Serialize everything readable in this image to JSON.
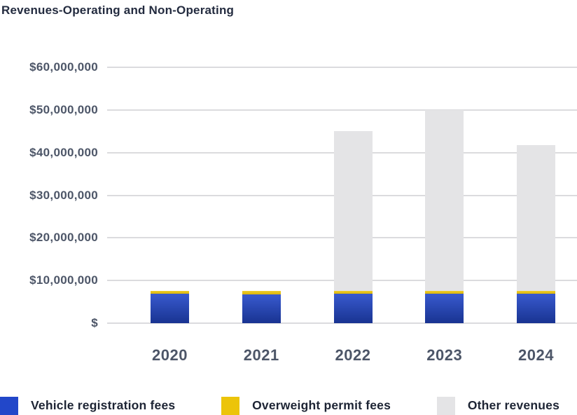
{
  "title": "Revenues-Operating and Non-Operating",
  "chart_data": {
    "type": "bar",
    "stacked": true,
    "title": "Revenues-Operating and Non-Operating",
    "xlabel": "",
    "ylabel": "",
    "categories": [
      "2020",
      "2021",
      "2022",
      "2023",
      "2024"
    ],
    "series": [
      {
        "name": "Vehicle registration fees",
        "color": "#2247c9",
        "values": [
          6900000,
          6800000,
          6900000,
          6900000,
          6900000
        ]
      },
      {
        "name": "Overweight permit fees",
        "color": "#ecc40a",
        "values": [
          700000,
          700000,
          600000,
          700000,
          600000
        ]
      },
      {
        "name": "Other revenues",
        "color": "#e4e4e6",
        "values": [
          0,
          0,
          37600000,
          42400000,
          34300000
        ]
      }
    ],
    "totals": [
      7600000,
      7500000,
      45100000,
      50000000,
      41800000
    ],
    "ylim": [
      0,
      60000000
    ],
    "ytick_interval": 10000000,
    "ytick_labels": [
      "$",
      "$10,000,000",
      "$20,000,000",
      "$30,000,000",
      "$40,000,000",
      "$50,000,000",
      "$60,000,000"
    ],
    "grid": "horizontal",
    "legend_position": "bottom",
    "colors": {
      "background": "#ffffff",
      "gridline": "#dbdbde",
      "axis_label": "#4d5668",
      "title_text": "#232b3f",
      "legend_text": "#1d2434"
    }
  }
}
